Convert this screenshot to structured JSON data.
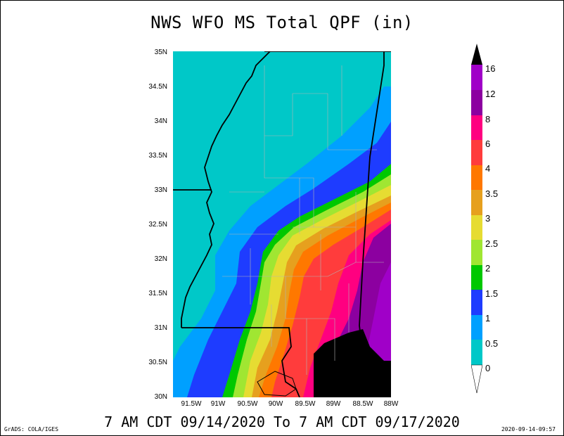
{
  "title": "NWS WFO MS Total QPF (in)",
  "valid_period": "7 AM CDT 09/14/2020 To 7 AM CDT 09/17/2020",
  "credit": "GrADS: COLA/IGES",
  "timestamp": "2020-09-14-09:57",
  "axes": {
    "lat_labels": [
      "35N",
      "34.5N",
      "34N",
      "33.5N",
      "33N",
      "32.5N",
      "32N",
      "31.5N",
      "31N",
      "30.5N",
      "30N"
    ],
    "lon_labels": [
      "91.5W",
      "91W",
      "90.5W",
      "90W",
      "89.5W",
      "89W",
      "88.5W",
      "88W"
    ]
  },
  "colorbar": {
    "labels": [
      "16",
      "12",
      "8",
      "6",
      "4",
      "3.5",
      "3",
      "2.5",
      "2",
      "1.5",
      "1",
      "0.5",
      "0"
    ],
    "colors": [
      "#a000c8",
      "#8c00a0",
      "#ff0080",
      "#ff3c3c",
      "#ff7800",
      "#e6a01e",
      "#e6dc32",
      "#a0e632",
      "#00c800",
      "#1e3cff",
      "#00a0ff",
      "#00c8c8"
    ]
  }
}
